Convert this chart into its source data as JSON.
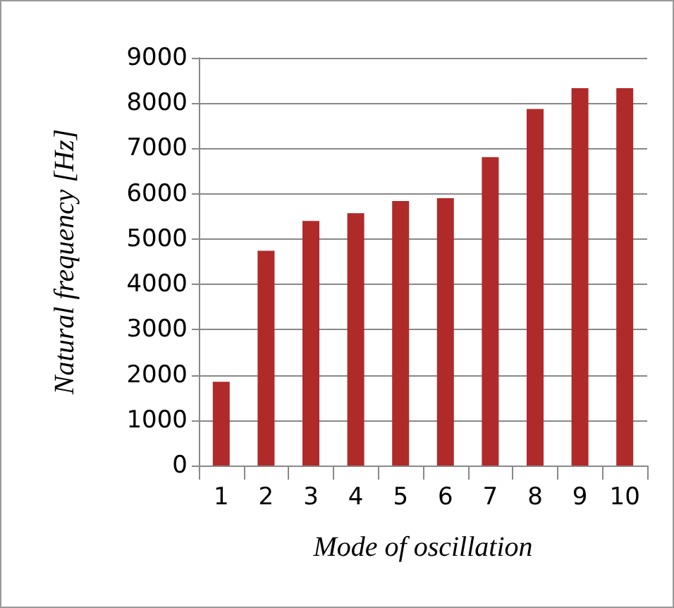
{
  "chart_data": {
    "type": "bar",
    "xlabel": "Mode of oscillation",
    "ylabel": "Natural frequency [Hz]",
    "categories": [
      "1",
      "2",
      "3",
      "4",
      "5",
      "6",
      "7",
      "8",
      "9",
      "10"
    ],
    "values": [
      1850,
      4740,
      5400,
      5570,
      5840,
      5900,
      6810,
      7870,
      8330,
      8330
    ],
    "color": "#b02a2a",
    "ylim": [
      0,
      9000
    ],
    "yticks": [
      0,
      1000,
      2000,
      3000,
      4000,
      5000,
      6000,
      7000,
      8000,
      9000
    ],
    "grid": "y"
  }
}
